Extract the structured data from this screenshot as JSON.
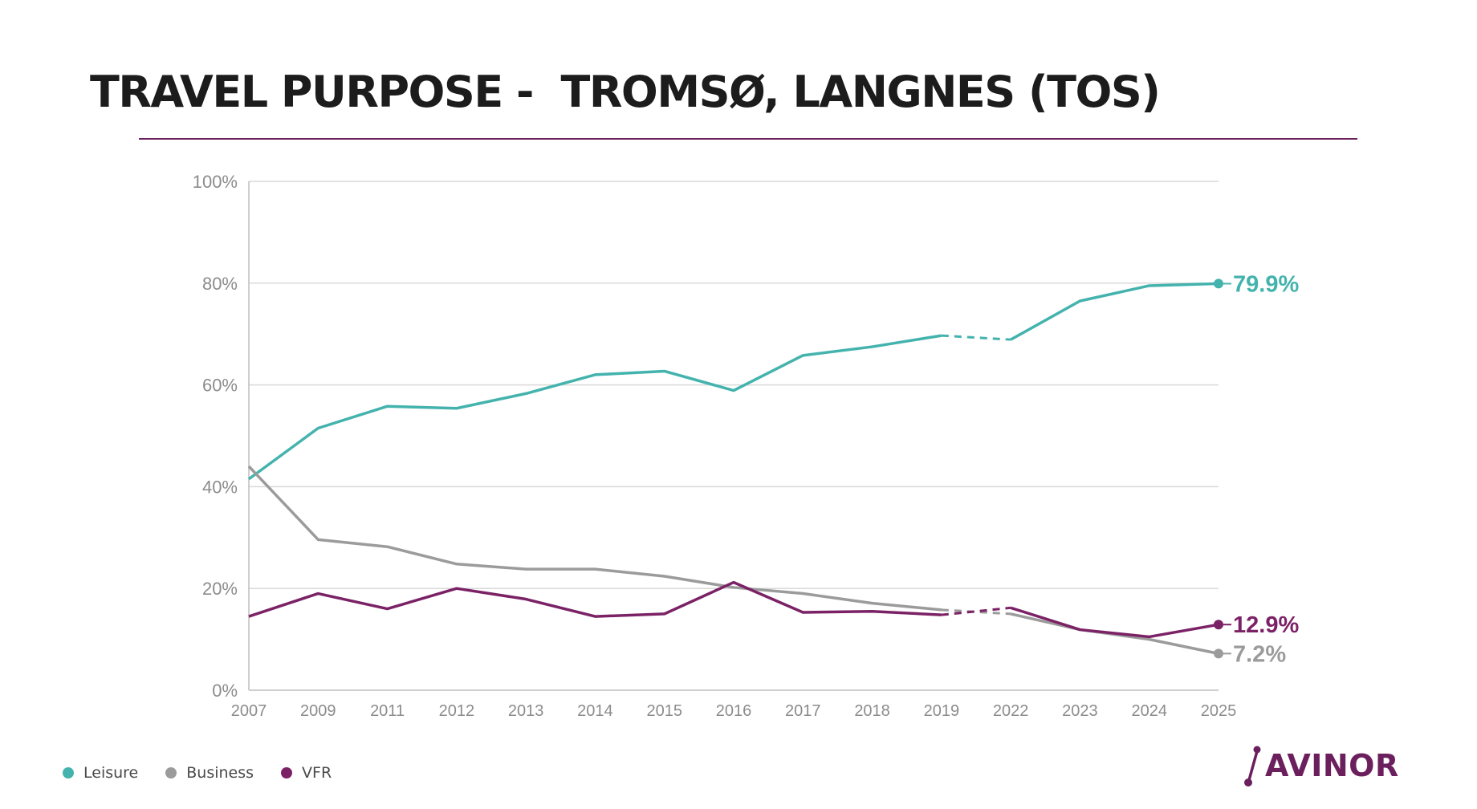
{
  "page": {
    "title": "TRAVEL PURPOSE -  TROMSØ, LANGNES (TOS)"
  },
  "logo": {
    "text": "AVINOR",
    "icon": "avinor-logo-icon"
  },
  "colors": {
    "leisure": "#44b3ad",
    "business": "#9b9b9b",
    "vfr": "#7b2266",
    "accent": "#6b1f5c"
  },
  "legend": [
    {
      "label": "Leisure",
      "color": "#44b3ad"
    },
    {
      "label": "Business",
      "color": "#9b9b9b"
    },
    {
      "label": "VFR",
      "color": "#7b2266"
    }
  ],
  "chart_data": {
    "type": "line",
    "categories": [
      "2007",
      "2009",
      "2011",
      "2012",
      "2013",
      "2014",
      "2015",
      "2016",
      "2017",
      "2018",
      "2019",
      "2022",
      "2023",
      "2024",
      "2025"
    ],
    "ylim": [
      0,
      100
    ],
    "yticks": [
      0,
      20,
      40,
      60,
      80,
      100
    ],
    "ytick_labels": [
      "0%",
      "20%",
      "40%",
      "60%",
      "80%",
      "100%"
    ],
    "grid": true,
    "legend_position": "bottom-left",
    "dashed_segment": [
      "2019",
      "2022"
    ],
    "series": [
      {
        "name": "Leisure",
        "color": "#44b3ad",
        "values": [
          41.5,
          51.5,
          55.8,
          55.4,
          58.3,
          62.0,
          62.7,
          58.9,
          65.8,
          67.5,
          69.7,
          68.9,
          76.5,
          79.5,
          79.9
        ],
        "end_label": "79.9%"
      },
      {
        "name": "Business",
        "color": "#9b9b9b",
        "values": [
          44.0,
          29.6,
          28.2,
          24.8,
          23.8,
          23.8,
          22.4,
          20.2,
          19.0,
          17.1,
          15.8,
          15.0,
          11.9,
          10.0,
          7.2
        ],
        "end_label": "7.2%"
      },
      {
        "name": "VFR",
        "color": "#7b2266",
        "values": [
          14.5,
          19.0,
          16.0,
          20.0,
          17.9,
          14.5,
          15.0,
          21.2,
          15.3,
          15.5,
          14.8,
          16.2,
          11.9,
          10.5,
          12.9
        ],
        "end_label": "12.9%"
      }
    ]
  }
}
